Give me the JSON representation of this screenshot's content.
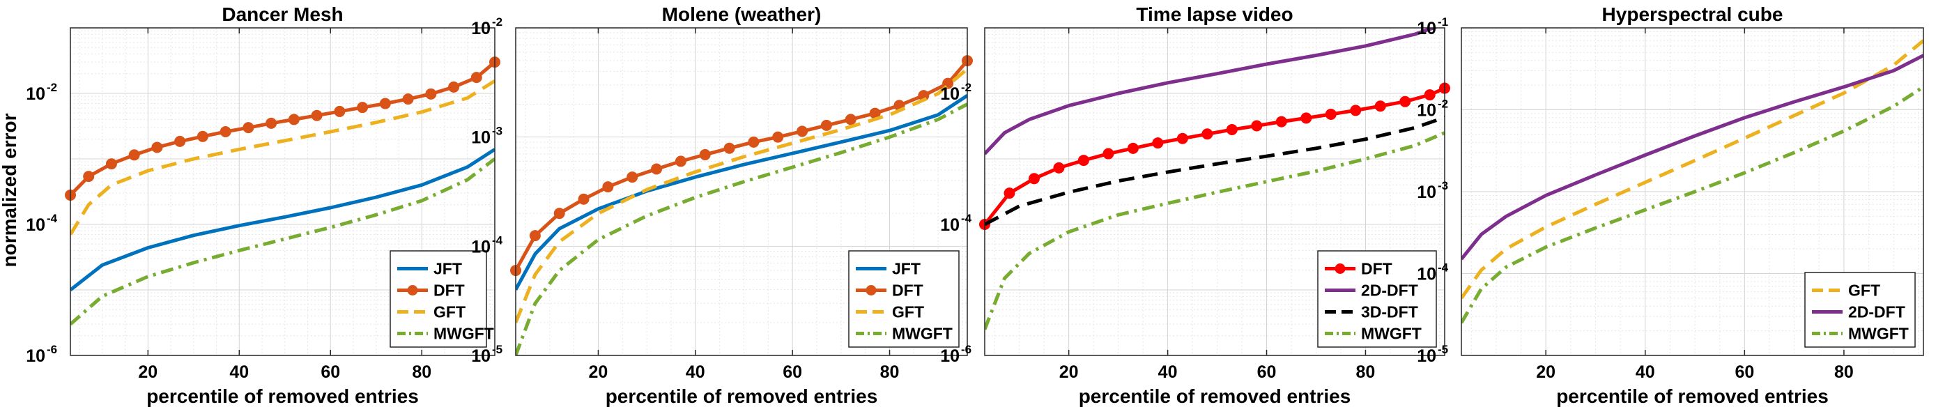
{
  "figure": {
    "ylabel": "normalized error"
  },
  "chart_data": [
    {
      "type": "line",
      "title": "Dancer Mesh",
      "xlabel": "percentile of removed entries",
      "ylabel": "normalized error",
      "xlim": [
        3,
        96
      ],
      "ylim_log10": [
        -6,
        -1
      ],
      "xticks": [
        20,
        40,
        60,
        80
      ],
      "yticks": [
        {
          "base": "10",
          "exp": "-6"
        },
        {
          "base": "10",
          "exp": "-4"
        },
        {
          "base": "10",
          "exp": "-2"
        }
      ],
      "legend_location": "bottom-right",
      "series": [
        {
          "name": "JFT",
          "color": "#0072BD",
          "style": "solid",
          "markers": false,
          "x": [
            3,
            10,
            20,
            30,
            40,
            50,
            60,
            70,
            80,
            90,
            96
          ],
          "y": [
            1e-05,
            2.4e-05,
            4.4e-05,
            6.8e-05,
            9.6e-05,
            0.00013,
            0.00018,
            0.00026,
            0.0004,
            0.00075,
            0.0014
          ]
        },
        {
          "name": "DFT",
          "color": "#D95319",
          "style": "solid",
          "markers": true,
          "x": [
            3,
            7,
            12,
            17,
            22,
            27,
            32,
            37,
            42,
            47,
            52,
            57,
            62,
            67,
            72,
            77,
            82,
            87,
            92,
            96
          ],
          "y": [
            0.00028,
            0.00054,
            0.00084,
            0.00115,
            0.0015,
            0.00185,
            0.0022,
            0.0026,
            0.003,
            0.0035,
            0.004,
            0.0046,
            0.0053,
            0.0061,
            0.007,
            0.0082,
            0.0098,
            0.0125,
            0.0175,
            0.03
          ]
        },
        {
          "name": "GFT",
          "color": "#EDB120",
          "style": "dashed",
          "markers": false,
          "x": [
            3,
            7,
            12,
            20,
            30,
            40,
            50,
            60,
            70,
            80,
            90,
            96
          ],
          "y": [
            7e-05,
            0.0002,
            0.0004,
            0.00066,
            0.001,
            0.0014,
            0.0019,
            0.0026,
            0.0036,
            0.0052,
            0.0085,
            0.0155
          ]
        },
        {
          "name": "MWGFT",
          "color": "#77AC30",
          "style": "dashdot",
          "markers": false,
          "x": [
            3,
            10,
            20,
            30,
            40,
            50,
            60,
            70,
            80,
            90,
            96
          ],
          "y": [
            3e-06,
            8e-06,
            1.6e-05,
            2.6e-05,
            4e-05,
            6e-05,
            9e-05,
            0.00014,
            0.00023,
            0.00048,
            0.001
          ]
        }
      ]
    },
    {
      "type": "line",
      "title": "Molene (weather)",
      "xlabel": "percentile of removed entries",
      "xlim": [
        3,
        96
      ],
      "ylim_log10": [
        -5,
        -2
      ],
      "xticks": [
        20,
        40,
        60,
        80
      ],
      "yticks": [
        {
          "base": "10",
          "exp": "-5"
        },
        {
          "base": "10",
          "exp": "-4"
        },
        {
          "base": "10",
          "exp": "-3"
        },
        {
          "base": "10",
          "exp": "-2"
        }
      ],
      "legend_location": "bottom-right",
      "series": [
        {
          "name": "JFT",
          "color": "#0072BD",
          "style": "solid",
          "markers": false,
          "x": [
            3,
            7,
            12,
            20,
            30,
            40,
            50,
            60,
            70,
            80,
            90,
            96
          ],
          "y": [
            4e-05,
            8.5e-05,
            0.000145,
            0.00022,
            0.00032,
            0.00043,
            0.00056,
            0.00071,
            0.0009,
            0.00115,
            0.0016,
            0.0024
          ]
        },
        {
          "name": "DFT",
          "color": "#D95319",
          "style": "solid",
          "markers": true,
          "x": [
            3,
            7,
            12,
            17,
            22,
            27,
            32,
            37,
            42,
            47,
            52,
            57,
            62,
            67,
            72,
            77,
            82,
            87,
            92,
            96
          ],
          "y": [
            6e-05,
            0.000125,
            0.0002,
            0.00027,
            0.00035,
            0.00043,
            0.00051,
            0.0006,
            0.00069,
            0.00079,
            0.0009,
            0.001,
            0.00113,
            0.00128,
            0.00145,
            0.00165,
            0.00195,
            0.0024,
            0.0031,
            0.005
          ]
        },
        {
          "name": "GFT",
          "color": "#EDB120",
          "style": "dashed",
          "markers": false,
          "x": [
            3,
            7,
            12,
            20,
            30,
            40,
            50,
            60,
            70,
            80,
            90,
            96
          ],
          "y": [
            2e-05,
            5.5e-05,
            0.00011,
            0.0002,
            0.00033,
            0.00048,
            0.00066,
            0.00088,
            0.00117,
            0.0016,
            0.0025,
            0.0042
          ]
        },
        {
          "name": "MWGFT",
          "color": "#77AC30",
          "style": "dashdot",
          "markers": false,
          "x": [
            3,
            7,
            12,
            20,
            30,
            40,
            50,
            60,
            70,
            80,
            90,
            96
          ],
          "y": [
            1e-05,
            3e-05,
            6e-05,
            0.000115,
            0.00019,
            0.00028,
            0.00039,
            0.00053,
            0.00072,
            0.001,
            0.00145,
            0.002
          ]
        }
      ]
    },
    {
      "type": "line",
      "title": "Time lapse video",
      "xlabel": "percentile of removed entries",
      "xlim": [
        3,
        96
      ],
      "ylim_log10": [
        -6,
        -1
      ],
      "xticks": [
        20,
        40,
        60,
        80
      ],
      "yticks": [
        {
          "base": "10",
          "exp": "-6"
        },
        {
          "base": "10",
          "exp": "-4"
        },
        {
          "base": "10",
          "exp": "-2"
        }
      ],
      "legend_location": "bottom-right",
      "series": [
        {
          "name": "DFT",
          "color": "#FF0000",
          "style": "solid",
          "markers": true,
          "x": [
            3,
            8,
            13,
            18,
            23,
            28,
            33,
            38,
            43,
            48,
            53,
            58,
            63,
            68,
            73,
            78,
            83,
            88,
            93,
            96
          ],
          "y": [
            0.0001,
            0.0003,
            0.0005,
            0.00073,
            0.00095,
            0.0012,
            0.00145,
            0.00175,
            0.00205,
            0.0024,
            0.0028,
            0.0032,
            0.0037,
            0.0042,
            0.0048,
            0.0055,
            0.0064,
            0.0075,
            0.0095,
            0.012
          ]
        },
        {
          "name": "2D-DFT",
          "color": "#7E2F8E",
          "style": "solid",
          "markers": false,
          "x": [
            3,
            7,
            12,
            20,
            30,
            40,
            50,
            60,
            70,
            80,
            90,
            96
          ],
          "y": [
            0.0012,
            0.0025,
            0.004,
            0.0065,
            0.01,
            0.0145,
            0.02,
            0.028,
            0.038,
            0.053,
            0.08,
            0.115
          ]
        },
        {
          "name": "3D-DFT",
          "color": "#000000",
          "style": "dashed",
          "markers": false,
          "x": [
            3,
            10,
            20,
            30,
            40,
            50,
            60,
            70,
            80,
            90,
            96
          ],
          "y": [
            0.0001,
            0.00019,
            0.00031,
            0.00046,
            0.00063,
            0.00084,
            0.0011,
            0.00145,
            0.002,
            0.003,
            0.0043
          ]
        },
        {
          "name": "MWGFT",
          "color": "#77AC30",
          "style": "dashdot",
          "markers": false,
          "x": [
            3,
            7,
            12,
            20,
            30,
            40,
            50,
            60,
            70,
            80,
            90,
            96
          ],
          "y": [
            2.5e-06,
            1.5e-05,
            3.6e-05,
            7.7e-05,
            0.00014,
            0.00021,
            0.00031,
            0.00045,
            0.00065,
            0.001,
            0.0016,
            0.0025
          ]
        }
      ]
    },
    {
      "type": "line",
      "title": "Hyperspectral cube",
      "xlabel": "percentile of removed entries",
      "xlim": [
        3,
        96
      ],
      "ylim_log10": [
        -5,
        -1
      ],
      "xticks": [
        20,
        40,
        60,
        80
      ],
      "yticks": [
        {
          "base": "10",
          "exp": "-5"
        },
        {
          "base": "10",
          "exp": "-4"
        },
        {
          "base": "10",
          "exp": "-3"
        },
        {
          "base": "10",
          "exp": "-2"
        },
        {
          "base": "10",
          "exp": "-1"
        }
      ],
      "legend_location": "bottom-right",
      "series": [
        {
          "name": "GFT",
          "color": "#EDB120",
          "style": "dashed",
          "markers": false,
          "x": [
            3,
            7,
            12,
            20,
            30,
            40,
            50,
            60,
            70,
            80,
            90,
            96
          ],
          "y": [
            5e-05,
            0.00011,
            0.0002,
            0.00037,
            0.0007,
            0.0013,
            0.0024,
            0.0045,
            0.0085,
            0.016,
            0.035,
            0.07
          ]
        },
        {
          "name": "2D-DFT",
          "color": "#7E2F8E",
          "style": "solid",
          "markers": false,
          "x": [
            3,
            7,
            12,
            20,
            30,
            40,
            50,
            60,
            70,
            80,
            90,
            96
          ],
          "y": [
            0.00015,
            0.0003,
            0.0005,
            0.0009,
            0.0016,
            0.0028,
            0.0048,
            0.008,
            0.0125,
            0.019,
            0.03,
            0.046
          ]
        },
        {
          "name": "MWGFT",
          "color": "#77AC30",
          "style": "dashdot",
          "markers": false,
          "x": [
            3,
            7,
            12,
            20,
            30,
            40,
            50,
            60,
            70,
            80,
            90,
            96
          ],
          "y": [
            2.5e-05,
            6.5e-05,
            0.00012,
            0.00021,
            0.00036,
            0.0006,
            0.001,
            0.0017,
            0.003,
            0.0055,
            0.011,
            0.019
          ]
        }
      ]
    }
  ]
}
